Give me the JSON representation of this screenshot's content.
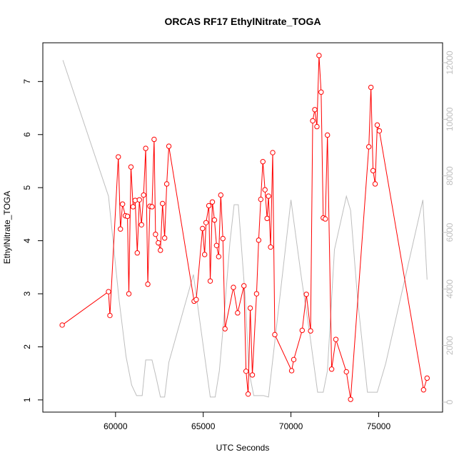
{
  "chart_data": {
    "type": "line",
    "title": "ORCAS RF17 EthylNitrate_TOGA",
    "x_label": "UTC Seconds",
    "y_label": "EthylNitrate_TOGA",
    "xlim": [
      55856,
      78644
    ],
    "ylim": [
      0.77,
      7.73
    ],
    "y2lim": [
      -353,
      12705
    ],
    "xticks": [
      60000,
      65000,
      70000,
      75000
    ],
    "yticks": [
      1,
      2,
      3,
      4,
      5,
      6,
      7
    ],
    "y2ticks": [
      0,
      2000,
      4000,
      6000,
      8000,
      10000,
      12000
    ],
    "y2_color": "#bebebe",
    "series": [
      {
        "color": "#ff0000",
        "marker": "circle",
        "axis": "y",
        "x": [
          56960,
          59600,
          59680,
          60160,
          60280,
          60400,
          60560,
          60680,
          60760,
          60880,
          61000,
          61120,
          61240,
          61360,
          61480,
          61600,
          61720,
          61840,
          61960,
          62080,
          62200,
          62280,
          62440,
          62560,
          62680,
          62800,
          62920,
          63040,
          64480,
          64600,
          64960,
          65080,
          65160,
          65320,
          65400,
          65520,
          65640,
          65760,
          65880,
          66000,
          66120,
          66240,
          66720,
          66960,
          67320,
          67440,
          67560,
          67680,
          67800,
          68040,
          68160,
          68280,
          68400,
          68520,
          68640,
          68720,
          68840,
          68960,
          69080,
          70040,
          70160,
          70640,
          70880,
          71120,
          71240,
          71360,
          71480,
          71600,
          71720,
          71840,
          71960,
          72080,
          72320,
          72560,
          73160,
          73400,
          74440,
          74560,
          74680,
          74800,
          74920,
          75040,
          77560,
          77760
        ],
        "values": [
          2.41,
          3.04,
          2.59,
          5.58,
          4.22,
          4.69,
          4.47,
          4.46,
          3.0,
          5.39,
          4.64,
          4.76,
          3.77,
          4.77,
          4.3,
          4.86,
          5.74,
          3.18,
          4.65,
          4.64,
          5.91,
          4.12,
          3.96,
          3.82,
          4.7,
          4.05,
          5.07,
          5.78,
          2.86,
          2.89,
          4.23,
          3.74,
          4.34,
          4.66,
          3.24,
          4.73,
          4.39,
          3.91,
          3.7,
          4.86,
          4.04,
          2.34,
          3.12,
          2.64,
          3.15,
          1.54,
          1.11,
          2.73,
          1.47,
          3.0,
          4.01,
          4.78,
          5.49,
          4.96,
          4.42,
          4.84,
          3.88,
          5.66,
          2.23,
          1.55,
          1.76,
          2.31,
          2.99,
          2.3,
          6.26,
          6.47,
          6.15,
          7.49,
          6.8,
          4.43,
          4.41,
          5.99,
          1.58,
          2.14,
          1.53,
          1.01,
          5.77,
          6.89,
          5.32,
          5.07,
          6.18,
          6.07,
          1.19,
          1.41
        ]
      },
      {
        "color": "#bebebe",
        "axis": "y2",
        "x": [
          57000,
          59600,
          60200,
          60600,
          60920,
          61200,
          61520,
          61720,
          62080,
          62320,
          62560,
          62800,
          63040,
          64440,
          65400,
          65680,
          65920,
          66200,
          66520,
          66760,
          67000,
          67400,
          67600,
          67880,
          68440,
          68720,
          70000,
          70600,
          71080,
          71520,
          71840,
          72080,
          72480,
          73160,
          73400,
          73800,
          74360,
          74920,
          75400,
          77520,
          77760
        ],
        "values": [
          12090,
          7280,
          3630,
          1610,
          600,
          230,
          230,
          1490,
          1490,
          860,
          180,
          180,
          1410,
          4510,
          180,
          180,
          1110,
          3120,
          5640,
          6980,
          6980,
          3630,
          1110,
          230,
          230,
          180,
          7150,
          4380,
          2370,
          350,
          350,
          1110,
          5390,
          7280,
          6780,
          3630,
          350,
          350,
          1360,
          7150,
          4330
        ]
      }
    ]
  }
}
